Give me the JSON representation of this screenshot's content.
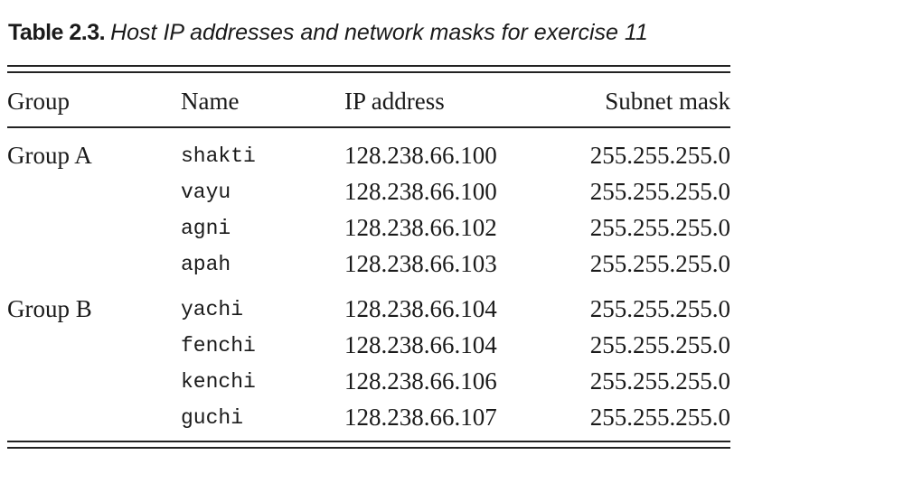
{
  "caption": {
    "label": "Table 2.3.",
    "title": "Host IP addresses and network masks for exercise 11"
  },
  "table": {
    "headers": {
      "group": "Group",
      "name": "Name",
      "ip": "IP address",
      "mask": "Subnet mask"
    },
    "groups": [
      {
        "label": "Group A",
        "rows": [
          {
            "name": "shakti",
            "ip": "128.238.66.100",
            "mask": "255.255.255.0"
          },
          {
            "name": "vayu",
            "ip": "128.238.66.100",
            "mask": "255.255.255.0"
          },
          {
            "name": "agni",
            "ip": "128.238.66.102",
            "mask": "255.255.255.0"
          },
          {
            "name": "apah",
            "ip": "128.238.66.103",
            "mask": "255.255.255.0"
          }
        ]
      },
      {
        "label": "Group B",
        "rows": [
          {
            "name": "yachi",
            "ip": "128.238.66.104",
            "mask": "255.255.255.0"
          },
          {
            "name": "fenchi",
            "ip": "128.238.66.104",
            "mask": "255.255.255.0"
          },
          {
            "name": "kenchi",
            "ip": "128.238.66.106",
            "mask": "255.255.255.0"
          },
          {
            "name": "guchi",
            "ip": "128.238.66.107",
            "mask": "255.255.255.0"
          }
        ]
      }
    ]
  }
}
